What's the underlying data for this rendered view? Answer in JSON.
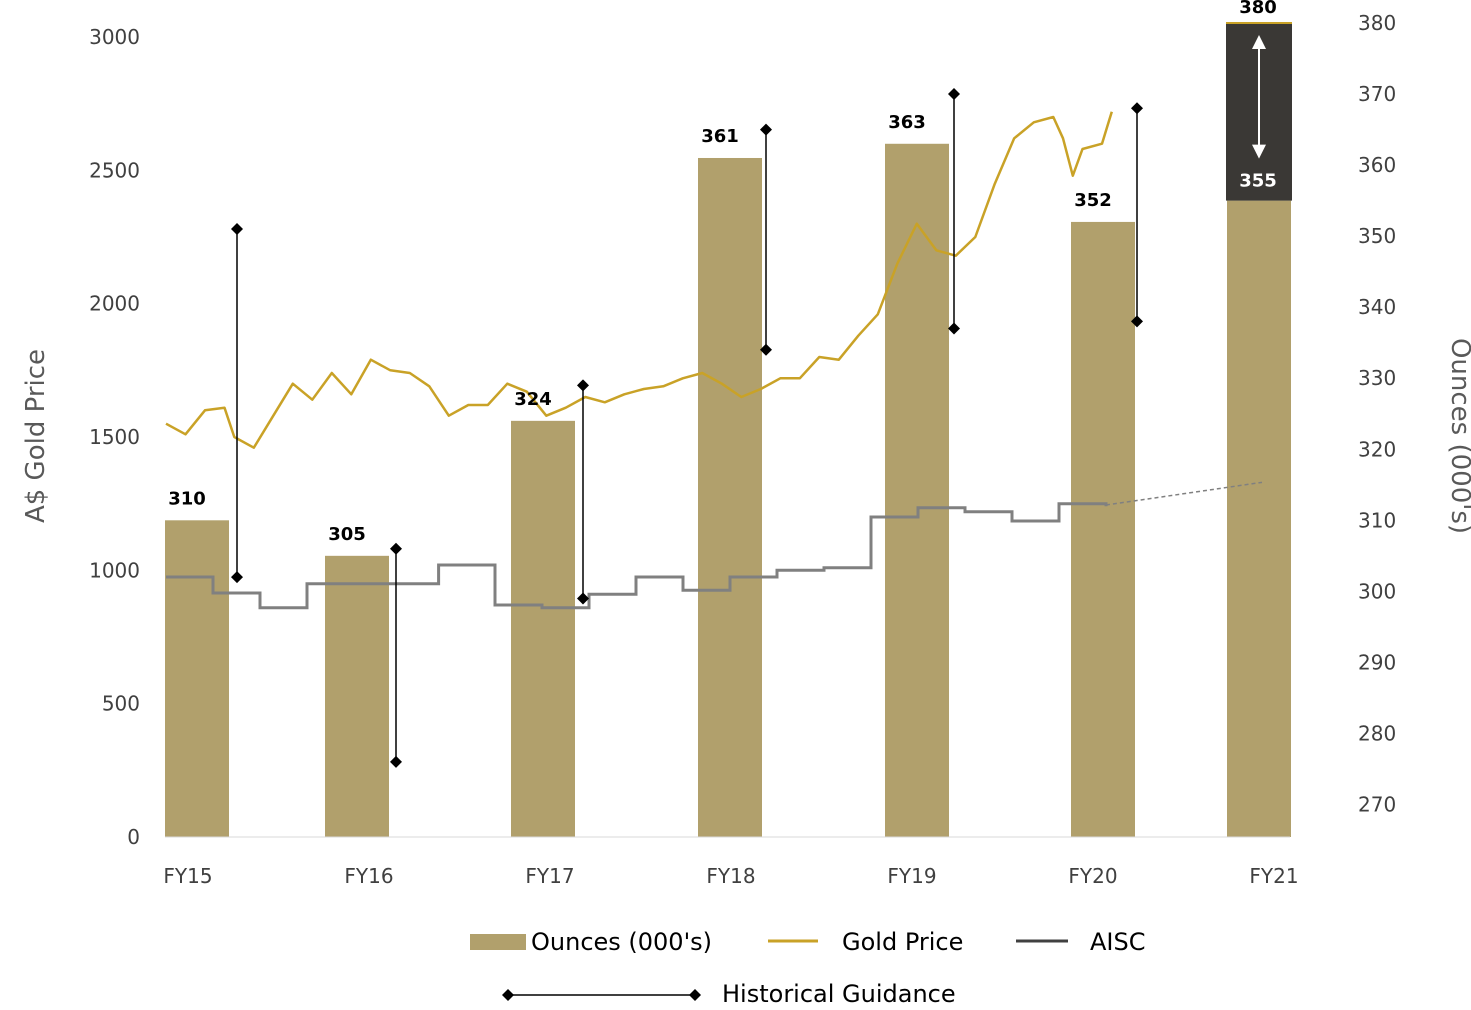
{
  "chart_data": {
    "type": "bar",
    "categories": [
      "FY15",
      "FY16",
      "FY17",
      "FY18",
      "FY19",
      "FY20",
      "FY21"
    ],
    "ylabel_left": "A$ Gold Price",
    "ylabel_right": "Ounces (000's)",
    "y_left": {
      "min": 0,
      "max": 3000,
      "ticks": [
        0,
        500,
        1000,
        1500,
        2000,
        2500,
        3000
      ]
    },
    "y_right": {
      "min": 265,
      "max": 380,
      "ticks": [
        270,
        280,
        290,
        300,
        310,
        320,
        330,
        340,
        350,
        360,
        370,
        380
      ]
    },
    "ounces": {
      "name": "Ounces (000's)",
      "color": "#b1a06c",
      "values": [
        310,
        305,
        324,
        361,
        363,
        352,
        355
      ],
      "labels": [
        "310",
        "305",
        "324",
        "361",
        "363",
        "352",
        "355"
      ]
    },
    "fy21_range": {
      "low": 355,
      "high": 380,
      "low_label": "355",
      "high_label": "380",
      "color": "#3a3835"
    },
    "gold_price": {
      "name": "Gold Price",
      "color": "#c9a227",
      "points": [
        [
          0.0,
          1550
        ],
        [
          0.1,
          1510
        ],
        [
          0.2,
          1600
        ],
        [
          0.3,
          1610
        ],
        [
          0.35,
          1500
        ],
        [
          0.45,
          1460
        ],
        [
          0.55,
          1580
        ],
        [
          0.65,
          1700
        ],
        [
          0.75,
          1640
        ],
        [
          0.85,
          1740
        ],
        [
          0.95,
          1660
        ],
        [
          1.05,
          1790
        ],
        [
          1.15,
          1750
        ],
        [
          1.25,
          1740
        ],
        [
          1.35,
          1690
        ],
        [
          1.45,
          1580
        ],
        [
          1.55,
          1620
        ],
        [
          1.65,
          1620
        ],
        [
          1.75,
          1700
        ],
        [
          1.85,
          1670
        ],
        [
          1.95,
          1580
        ],
        [
          2.05,
          1610
        ],
        [
          2.15,
          1650
        ],
        [
          2.25,
          1630
        ],
        [
          2.35,
          1660
        ],
        [
          2.45,
          1680
        ],
        [
          2.55,
          1690
        ],
        [
          2.65,
          1720
        ],
        [
          2.75,
          1740
        ],
        [
          2.85,
          1700
        ],
        [
          2.95,
          1650
        ],
        [
          3.05,
          1680
        ],
        [
          3.15,
          1720
        ],
        [
          3.25,
          1720
        ],
        [
          3.35,
          1800
        ],
        [
          3.45,
          1790
        ],
        [
          3.55,
          1880
        ],
        [
          3.65,
          1960
        ],
        [
          3.75,
          2150
        ],
        [
          3.85,
          2300
        ],
        [
          3.95,
          2200
        ],
        [
          4.05,
          2180
        ],
        [
          4.15,
          2250
        ],
        [
          4.25,
          2450
        ],
        [
          4.35,
          2620
        ],
        [
          4.45,
          2680
        ],
        [
          4.55,
          2700
        ],
        [
          4.6,
          2620
        ],
        [
          4.65,
          2480
        ],
        [
          4.7,
          2580
        ],
        [
          4.8,
          2600
        ],
        [
          4.85,
          2720
        ]
      ]
    },
    "aisc": {
      "name": "AISC",
      "color": "#808080",
      "steps": [
        [
          0.0,
          975
        ],
        [
          0.25,
          915
        ],
        [
          0.5,
          860
        ],
        [
          0.75,
          950
        ],
        [
          1.45,
          1020
        ],
        [
          1.75,
          870
        ],
        [
          2.0,
          860
        ],
        [
          2.25,
          910
        ],
        [
          2.5,
          975
        ],
        [
          2.75,
          925
        ],
        [
          3.0,
          975
        ],
        [
          3.25,
          1000
        ],
        [
          3.5,
          1010
        ],
        [
          3.75,
          1200
        ],
        [
          4.0,
          1235
        ],
        [
          4.25,
          1220
        ],
        [
          4.5,
          1185
        ],
        [
          4.75,
          1250
        ],
        [
          5.0,
          1240
        ]
      ],
      "projection": [
        [
          5.0,
          1245
        ],
        [
          6.0,
          1330
        ]
      ]
    },
    "historical_guidance": {
      "name": "Historical Guidance",
      "color": "#000000",
      "items": [
        {
          "x": 0.5,
          "low": 302,
          "high": 351
        },
        {
          "x": 1.45,
          "low": 276,
          "high": 306
        },
        {
          "x": 2.5,
          "low": 299,
          "high": 329
        },
        {
          "x": 3.45,
          "low": 334,
          "high": 365
        },
        {
          "x": 4.4,
          "low": 337,
          "high": 370
        },
        {
          "x": 5.35,
          "low": 338,
          "high": 368
        }
      ]
    },
    "legend": {
      "ounces": "Ounces (000's)",
      "gold": "Gold Price",
      "aisc": "AISC",
      "guidance": "Historical Guidance"
    }
  }
}
